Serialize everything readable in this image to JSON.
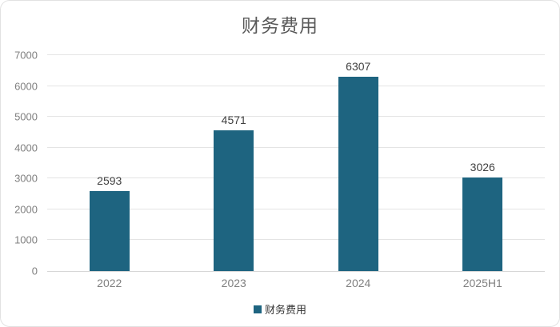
{
  "chart_data": {
    "type": "bar",
    "title": "财务费用",
    "categories": [
      "2022",
      "2023",
      "2024",
      "2025H1"
    ],
    "series": [
      {
        "name": "财务费用",
        "values": [
          2593,
          4571,
          6307,
          3026
        ]
      }
    ],
    "data_labels": [
      "2593",
      "4571",
      "6307",
      "3026"
    ],
    "ylim": [
      0,
      7000
    ],
    "yticks": [
      0,
      1000,
      2000,
      3000,
      4000,
      5000,
      6000,
      7000
    ],
    "grid": true,
    "legend_position": "bottom",
    "bar_color": "#1e6480"
  },
  "legend": {
    "label": "财务费用",
    "marker_color": "#1e6480"
  },
  "colors": {
    "title_text": "#595959",
    "axis_text": "#808080",
    "data_label_text": "#404040",
    "gridline": "#e4e4e4",
    "axis_line": "#d6d6d6",
    "card_border": "#e2e2e2",
    "background": "#ffffff"
  }
}
